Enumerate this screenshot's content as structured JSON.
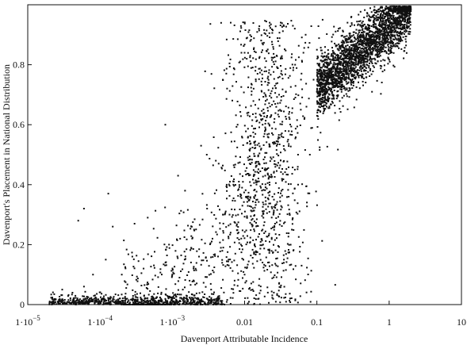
{
  "chart_data": {
    "type": "scatter",
    "xlabel": "Davenport Attributable Incidence",
    "ylabel": "Davenport's Placement in National Distribution",
    "xscale": "log",
    "xlim": [
      1e-05,
      10
    ],
    "ylim": [
      0,
      1
    ],
    "grid": false,
    "legend": "none",
    "x_ticks": [
      {
        "value": 1e-05,
        "base": "1·10",
        "exp": "−5"
      },
      {
        "value": 0.0001,
        "base": "1·10",
        "exp": "−4"
      },
      {
        "value": 0.001,
        "base": "1·10",
        "exp": "−3"
      },
      {
        "value": 0.01,
        "base": "0.01",
        "exp": ""
      },
      {
        "value": 0.1,
        "base": "0.1",
        "exp": ""
      },
      {
        "value": 1,
        "base": "1",
        "exp": ""
      },
      {
        "value": 10,
        "base": "10",
        "exp": ""
      }
    ],
    "y_ticks": [
      {
        "value": 0,
        "label": "0"
      },
      {
        "value": 0.2,
        "label": "0.2"
      },
      {
        "value": 0.4,
        "label": "0.4"
      },
      {
        "value": 0.6,
        "label": "0.6"
      },
      {
        "value": 0.8,
        "label": "0.8"
      }
    ],
    "marker_color": "#111111",
    "points": [
      [
        2e-05,
        0.005
      ],
      [
        3e-05,
        0.01
      ],
      [
        4e-05,
        0.003
      ],
      [
        5e-05,
        0.008
      ],
      [
        7e-05,
        0.004
      ],
      [
        0.0001,
        0.006
      ],
      [
        0.00015,
        0.01
      ],
      [
        0.0002,
        0.005
      ],
      [
        0.0003,
        0.012
      ],
      [
        0.0005,
        0.009
      ],
      [
        0.0007,
        0.015
      ],
      [
        0.001,
        0.02
      ],
      [
        0.0015,
        0.012
      ],
      [
        0.002,
        0.03
      ],
      [
        0.003,
        0.02
      ],
      [
        3e-05,
        0.05
      ],
      [
        6e-05,
        0.06
      ],
      [
        8e-05,
        0.1
      ],
      [
        5e-05,
        0.28
      ],
      [
        6e-05,
        0.32
      ],
      [
        0.00013,
        0.37
      ],
      [
        0.00015,
        0.26
      ],
      [
        0.00012,
        0.15
      ],
      [
        0.0002,
        0.1
      ],
      [
        0.0004,
        0.12
      ],
      [
        0.0008,
        0.6
      ],
      [
        0.0009,
        0.2
      ],
      [
        0.001,
        0.1
      ],
      [
        0.0012,
        0.43
      ],
      [
        0.0015,
        0.38
      ],
      [
        0.002,
        0.25
      ],
      [
        0.0025,
        0.53
      ],
      [
        0.003,
        0.5
      ],
      [
        0.004,
        0.48
      ],
      [
        0.005,
        0.75
      ],
      [
        0.005,
        0.3
      ],
      [
        0.006,
        0.15
      ],
      [
        0.007,
        0.4
      ],
      [
        0.008,
        0.6
      ],
      [
        0.009,
        0.22
      ],
      [
        0.01,
        0.84
      ],
      [
        0.01,
        0.1
      ],
      [
        0.012,
        0.52
      ],
      [
        0.015,
        0.35
      ],
      [
        0.018,
        0.2
      ],
      [
        0.02,
        0.45
      ],
      [
        0.022,
        0.6
      ],
      [
        0.025,
        0.3
      ],
      [
        0.03,
        0.7
      ],
      [
        0.035,
        0.15
      ],
      [
        0.04,
        0.55
      ],
      [
        0.045,
        0.25
      ],
      [
        0.05,
        0.8
      ],
      [
        0.055,
        0.4
      ],
      [
        0.06,
        0.65
      ],
      [
        0.07,
        0.9
      ],
      [
        0.08,
        0.5
      ],
      [
        0.09,
        0.75
      ],
      [
        0.1,
        0.85
      ],
      [
        0.12,
        0.95
      ],
      [
        0.15,
        0.7
      ],
      [
        0.2,
        0.92
      ],
      [
        0.25,
        0.88
      ],
      [
        0.3,
        0.96
      ],
      [
        0.4,
        0.93
      ],
      [
        0.5,
        0.97
      ],
      [
        0.7,
        0.95
      ],
      [
        1,
        0.98
      ],
      [
        1.5,
        0.99
      ],
      [
        2,
        0.985
      ]
    ],
    "generated_cloud": true,
    "cloud_seed": 12345
  }
}
